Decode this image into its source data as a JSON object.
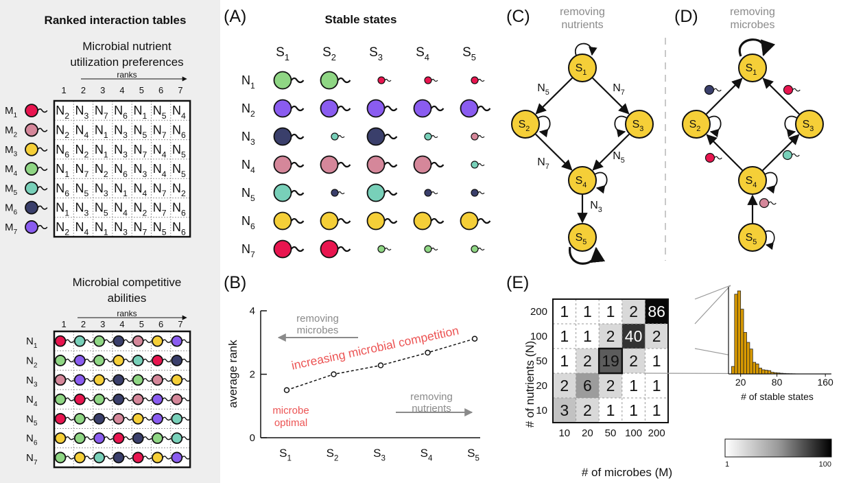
{
  "left_panel": {
    "title": "Ranked interaction tables",
    "pref_table": {
      "title_line1": "Microbial nutrient",
      "title_line2": "utilization preferences",
      "ranks_label": "ranks",
      "rank_numbers": [
        "1",
        "2",
        "3",
        "4",
        "5",
        "6",
        "7"
      ],
      "row_labels": [
        "M1",
        "M2",
        "M3",
        "M4",
        "M5",
        "M6",
        "M7"
      ],
      "row_colors": [
        "#e8154f",
        "#d5879a",
        "#f5cf38",
        "#8fd684",
        "#78d0b9",
        "#3a3f6b",
        "#8a5cf0"
      ],
      "cells": [
        [
          "N2",
          "N3",
          "N7",
          "N6",
          "N1",
          "N5",
          "N4"
        ],
        [
          "N2",
          "N4",
          "N1",
          "N3",
          "N5",
          "N7",
          "N6"
        ],
        [
          "N6",
          "N2",
          "N1",
          "N3",
          "N7",
          "N4",
          "N5"
        ],
        [
          "N1",
          "N7",
          "N2",
          "N6",
          "N3",
          "N4",
          "N5"
        ],
        [
          "N6",
          "N5",
          "N3",
          "N1",
          "N4",
          "N7",
          "N2"
        ],
        [
          "N1",
          "N3",
          "N5",
          "N4",
          "N2",
          "N7",
          "N6"
        ],
        [
          "N2",
          "N4",
          "N1",
          "N3",
          "N7",
          "N5",
          "N6"
        ]
      ]
    },
    "comp_table": {
      "title_line1": "Microbial competitive",
      "title_line2": "abilities",
      "ranks_label": "ranks",
      "rank_numbers": [
        "1",
        "2",
        "3",
        "4",
        "5",
        "6",
        "7"
      ],
      "row_labels": [
        "N1",
        "N2",
        "N3",
        "N4",
        "N5",
        "N6",
        "N7"
      ],
      "cells": [
        [
          "M1",
          "M5",
          "M4",
          "M6",
          "M2",
          "M3",
          "M7"
        ],
        [
          "M4",
          "M7",
          "M4",
          "M3",
          "M5",
          "M1",
          "M6"
        ],
        [
          "M2",
          "M7",
          "M3",
          "M6",
          "M4",
          "M2",
          "M3"
        ],
        [
          "M4",
          "M1",
          "M4",
          "M6",
          "M2",
          "M7",
          "M2"
        ],
        [
          "M1",
          "M4",
          "M6",
          "M2",
          "M3",
          "M7",
          "M5"
        ],
        [
          "M3",
          "M4",
          "M7",
          "M1",
          "M6",
          "M4",
          "M5"
        ],
        [
          "M4",
          "M3",
          "M5",
          "M6",
          "M1",
          "M3",
          "M7"
        ]
      ]
    }
  },
  "panel_a": {
    "label": "(A)",
    "title": "Stable states",
    "columns": [
      "S1",
      "S2",
      "S3",
      "S4",
      "S5"
    ],
    "rows": [
      "N1",
      "N2",
      "N3",
      "N4",
      "N5",
      "N6",
      "N7"
    ],
    "row_colors": [
      "#e8154f",
      "#8a5cf0",
      "#3a3f6b",
      "#d5879a",
      "#78d0b9",
      "#f5cf38",
      "#e8154f"
    ],
    "cells": [
      [
        {
          "color": "#8fd684",
          "size": "large"
        },
        {
          "color": "#8fd684",
          "size": "large"
        },
        {
          "color": "#e8154f",
          "size": "small"
        },
        {
          "color": "#e8154f",
          "size": "small"
        },
        {
          "color": "#e8154f",
          "size": "small"
        }
      ],
      [
        {
          "color": "#8a5cf0",
          "size": "large"
        },
        {
          "color": "#8a5cf0",
          "size": "large"
        },
        {
          "color": "#8a5cf0",
          "size": "large"
        },
        {
          "color": "#8a5cf0",
          "size": "large"
        },
        {
          "color": "#8a5cf0",
          "size": "large"
        }
      ],
      [
        {
          "color": "#3a3f6b",
          "size": "large"
        },
        {
          "color": "#78d0b9",
          "size": "small"
        },
        {
          "color": "#3a3f6b",
          "size": "large"
        },
        {
          "color": "#78d0b9",
          "size": "small"
        },
        {
          "color": "#d5879a",
          "size": "small"
        }
      ],
      [
        {
          "color": "#d5879a",
          "size": "large"
        },
        {
          "color": "#d5879a",
          "size": "large"
        },
        {
          "color": "#d5879a",
          "size": "large"
        },
        {
          "color": "#d5879a",
          "size": "large"
        },
        {
          "color": "#78d0b9",
          "size": "small"
        }
      ],
      [
        {
          "color": "#78d0b9",
          "size": "large"
        },
        {
          "color": "#3a3f6b",
          "size": "small"
        },
        {
          "color": "#78d0b9",
          "size": "large"
        },
        {
          "color": "#3a3f6b",
          "size": "small"
        },
        {
          "color": "#3a3f6b",
          "size": "small"
        }
      ],
      [
        {
          "color": "#f5cf38",
          "size": "large"
        },
        {
          "color": "#f5cf38",
          "size": "large"
        },
        {
          "color": "#f5cf38",
          "size": "large"
        },
        {
          "color": "#f5cf38",
          "size": "large"
        },
        {
          "color": "#f5cf38",
          "size": "large"
        }
      ],
      [
        {
          "color": "#e8154f",
          "size": "large"
        },
        {
          "color": "#e8154f",
          "size": "large"
        },
        {
          "color": "#8fd684",
          "size": "small"
        },
        {
          "color": "#8fd684",
          "size": "small"
        },
        {
          "color": "#8fd684",
          "size": "small"
        }
      ]
    ]
  },
  "panel_b": {
    "label": "(B)",
    "ylabel": "average rank",
    "ytick_labels": [
      "0",
      "2",
      "4"
    ],
    "annotation_removing_microbes": [
      "removing",
      "microbes"
    ],
    "annotation_removing_nutrients": [
      "removing",
      "nutrients"
    ],
    "annotation_competition": "increasing microbial competition",
    "annotation_optimal": [
      "microbe",
      "optimal"
    ]
  },
  "panel_c": {
    "label": "(C)",
    "note": [
      "removing",
      "nutrients"
    ],
    "edge_labels": [
      "N5",
      "N7",
      "N7",
      "N5",
      "N3"
    ]
  },
  "panel_d": {
    "label": "(D)",
    "note": [
      "removing",
      "microbes"
    ]
  },
  "panel_e": {
    "label": "(E)",
    "ylabel": "# of nutrients (N)",
    "xlabel": "# of microbes (M)",
    "colorbar_min_label": "1",
    "colorbar_max_label": "100",
    "inset_xlabel": "# of stable states",
    "inset_xtick_labels": [
      "20",
      "80",
      "160"
    ]
  },
  "state_node_color": "#f5cf38",
  "chart_data": [
    {
      "type": "line",
      "title": "",
      "categories": [
        "S1",
        "S2",
        "S3",
        "S4",
        "S5"
      ],
      "values": [
        1.5,
        2.0,
        2.28,
        2.68,
        3.12
      ],
      "xlabel": "",
      "ylabel": "average rank",
      "ylim": [
        0,
        4
      ],
      "grid": false
    },
    {
      "type": "heatmap",
      "title": "",
      "x": [
        "10",
        "20",
        "50",
        "100",
        "200"
      ],
      "y": [
        "200",
        "100",
        "50",
        "20",
        "10"
      ],
      "values": [
        [
          1,
          1,
          1,
          2,
          86
        ],
        [
          1,
          1,
          2,
          40,
          2
        ],
        [
          1,
          2,
          19,
          2,
          1
        ],
        [
          2,
          6,
          2,
          1,
          1
        ],
        [
          3,
          2,
          1,
          1,
          1
        ]
      ],
      "xlabel": "# of microbes (M)",
      "ylabel": "# of nutrients (N)",
      "colorbar_range": [
        1,
        100
      ]
    },
    {
      "type": "bar",
      "title": "",
      "xlabel": "# of stable states",
      "x_ticks": [
        20,
        80,
        160
      ],
      "xlim": [
        0,
        170
      ],
      "bin_width": 5,
      "bin_starts": [
        5,
        10,
        15,
        20,
        25,
        30,
        35,
        40,
        45,
        50,
        55,
        60,
        65,
        70,
        75,
        80,
        85,
        90,
        95,
        100,
        105,
        110
      ],
      "values": [
        0.09,
        0.96,
        1.0,
        0.78,
        0.5,
        0.38,
        0.3,
        0.14,
        0.12,
        0.07,
        0.05,
        0.045,
        0.04,
        0.02,
        0.015,
        0.012,
        0.008,
        0.006,
        0.004,
        0.003,
        0.002,
        0.001
      ],
      "color": "#d99a00"
    }
  ]
}
